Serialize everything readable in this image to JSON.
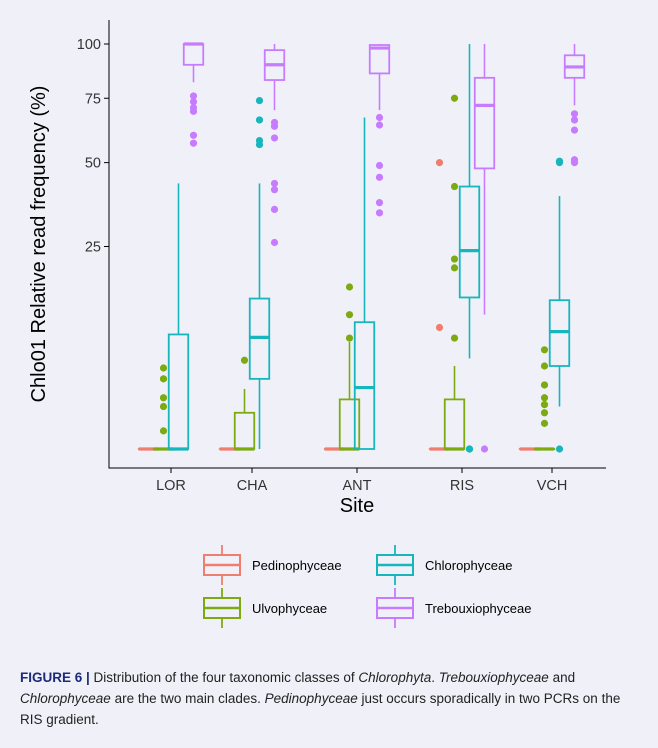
{
  "colors": {
    "Pedinophyceae": "#f07e6e",
    "Ulvophyceae": "#7eaa11",
    "Chlorophyceae": "#17b6bd",
    "Trebouxiophyceae": "#c77cff",
    "panel_bg": "#f0f1f8"
  },
  "caption": {
    "label": "FIGURE 6 |",
    "runs": [
      {
        "text": " Distribution of the four taxonomic classes of ",
        "italic": false
      },
      {
        "text": "Chlorophyta",
        "italic": true
      },
      {
        "text": ". ",
        "italic": false
      },
      {
        "text": "Trebouxiophyceae",
        "italic": true
      },
      {
        "text": " and ",
        "italic": false
      },
      {
        "text": "Chlorophyceae",
        "italic": true
      },
      {
        "text": " are the two main clades. ",
        "italic": false
      },
      {
        "text": "Pedinophyceae",
        "italic": true
      },
      {
        "text": " just occurs sporadically in two PCRs on the RIS gradient.",
        "italic": false
      }
    ]
  },
  "chart_data": {
    "type": "box",
    "xlabel": "Site",
    "ylabel": "Chlo01 Relative read frequency (%)",
    "y_scale": "sqrt",
    "ylim": [
      0,
      100
    ],
    "y_ticks": [
      25,
      50,
      75,
      100
    ],
    "categories": [
      "LOR",
      "CHA",
      "ANT",
      "RIS",
      "VCH"
    ],
    "legend_position": "bottom",
    "series": [
      {
        "name": "Pedinophyceae",
        "boxes": [
          {
            "site": "LOR",
            "whisker_low": 0,
            "q1": 0,
            "median": 0,
            "q3": 0,
            "whisker_high": 0,
            "outliers": []
          },
          {
            "site": "CHA",
            "whisker_low": 0,
            "q1": 0,
            "median": 0,
            "q3": 0,
            "whisker_high": 0,
            "outliers": []
          },
          {
            "site": "ANT",
            "whisker_low": 0,
            "q1": 0,
            "median": 0,
            "q3": 0,
            "whisker_high": 0,
            "outliers": []
          },
          {
            "site": "RIS",
            "whisker_low": 0,
            "q1": 0,
            "median": 0,
            "q3": 0,
            "whisker_high": 0,
            "outliers": [
              50,
              9
            ]
          },
          {
            "site": "VCH",
            "whisker_low": 0,
            "q1": 0,
            "median": 0,
            "q3": 0,
            "whisker_high": 0,
            "outliers": []
          }
        ]
      },
      {
        "name": "Ulvophyceae",
        "boxes": [
          {
            "site": "LOR",
            "whisker_low": 0,
            "q1": 0,
            "median": 0,
            "q3": 0,
            "whisker_high": 0,
            "outliers": [
              4,
              3,
              1.6,
              1.1,
              0.2
            ]
          },
          {
            "site": "CHA",
            "whisker_low": 0,
            "q1": 0,
            "median": 0,
            "q3": 0.8,
            "whisker_high": 2.2,
            "outliers": [
              4.8
            ]
          },
          {
            "site": "ANT",
            "whisker_low": 0,
            "q1": 0,
            "median": 0,
            "q3": 1.5,
            "whisker_high": 7,
            "outliers": [
              16,
              11,
              7.5
            ]
          },
          {
            "site": "RIS",
            "whisker_low": 0,
            "q1": 0,
            "median": 0,
            "q3": 1.5,
            "whisker_high": 4.2,
            "outliers": [
              75,
              42,
              22,
              20,
              7.5
            ]
          },
          {
            "site": "VCH",
            "whisker_low": 0,
            "q1": 0,
            "median": 0,
            "q3": 0,
            "whisker_high": 0,
            "outliers": [
              6,
              4.2,
              2.5,
              1.6,
              1.2,
              0.8,
              0.4
            ]
          }
        ]
      },
      {
        "name": "Chlorophyceae",
        "boxes": [
          {
            "site": "LOR",
            "whisker_low": 0,
            "q1": 0,
            "median": 0,
            "q3": 8,
            "whisker_high": 43,
            "outliers": []
          },
          {
            "site": "CHA",
            "whisker_low": 0,
            "q1": 3,
            "median": 7.6,
            "q3": 13.8,
            "whisker_high": 43,
            "outliers": [
              74,
              66,
              58,
              56.5
            ]
          },
          {
            "site": "ANT",
            "whisker_low": 0,
            "q1": 0,
            "median": 2.3,
            "q3": 9.8,
            "whisker_high": 67,
            "outliers": []
          },
          {
            "site": "RIS",
            "whisker_low": 5,
            "q1": 14,
            "median": 24,
            "q3": 42,
            "whisker_high": 100,
            "outliers": [
              0,
              0
            ]
          },
          {
            "site": "VCH",
            "whisker_low": 1.1,
            "q1": 4.2,
            "median": 8.4,
            "q3": 13.5,
            "whisker_high": 39,
            "outliers": [
              50.5,
              50,
              0
            ]
          }
        ]
      },
      {
        "name": "Trebouxiophyceae",
        "boxes": [
          {
            "site": "LOR",
            "whisker_low": 82,
            "q1": 90,
            "median": 100,
            "q3": 100,
            "whisker_high": 100,
            "outliers": [
              76,
              73.5,
              71,
              69.5,
              60,
              57
            ]
          },
          {
            "site": "CHA",
            "whisker_low": 70,
            "q1": 83,
            "median": 90,
            "q3": 97,
            "whisker_high": 100,
            "outliers": [
              65,
              63.5,
              59,
              43,
              41,
              35,
              26
            ]
          },
          {
            "site": "ANT",
            "whisker_low": 70,
            "q1": 86,
            "median": 98,
            "q3": 99.5,
            "whisker_high": 100,
            "outliers": [
              67,
              64,
              49,
              45,
              37,
              34
            ]
          },
          {
            "site": "RIS",
            "whisker_low": 11,
            "q1": 48,
            "median": 72,
            "q3": 84,
            "whisker_high": 100,
            "outliers": [
              0
            ]
          },
          {
            "site": "VCH",
            "whisker_low": 72,
            "q1": 84,
            "median": 89,
            "q3": 94.5,
            "whisker_high": 100,
            "outliers": [
              68.5,
              66,
              62,
              51,
              50
            ]
          }
        ]
      }
    ]
  }
}
